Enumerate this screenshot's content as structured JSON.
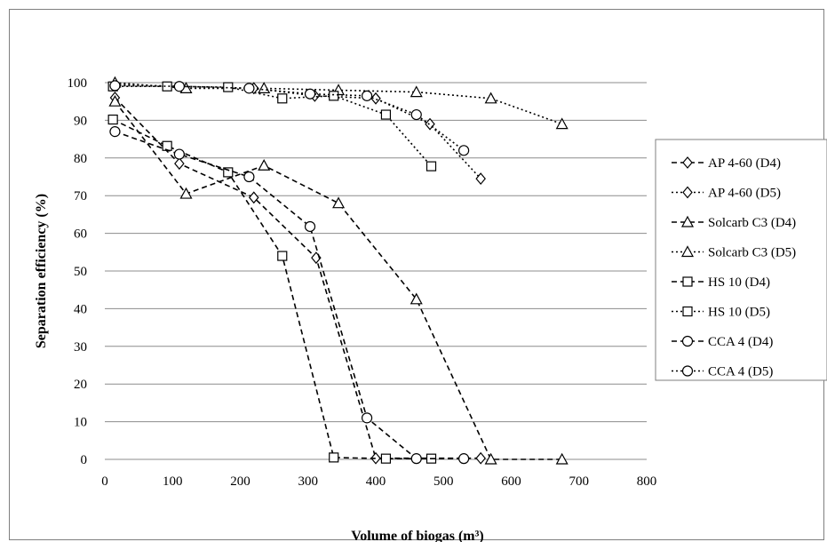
{
  "chart_data": {
    "type": "line",
    "title": "",
    "xlabel": "Volume of biogas (m³)",
    "ylabel": "Separation efficiency (%)",
    "xlim": [
      0,
      800
    ],
    "ylim": [
      0,
      100
    ],
    "x_ticks": [
      0,
      100,
      200,
      300,
      400,
      500,
      600,
      700,
      800
    ],
    "y_ticks": [
      0,
      10,
      20,
      30,
      40,
      50,
      60,
      70,
      80,
      90,
      100
    ],
    "grid": "horizontal",
    "legend_position": "right",
    "series": [
      {
        "name": "AP 4-60 (D4)",
        "marker": "diamond",
        "dash": "dashed",
        "points": [
          [
            15,
            96
          ],
          [
            110,
            78.5
          ],
          [
            220,
            69.5
          ],
          [
            312,
            53.5
          ],
          [
            400,
            0.3
          ],
          [
            555,
            0.3
          ]
        ]
      },
      {
        "name": "AP 4-60 (D5)",
        "marker": "diamond",
        "dash": "dotted",
        "points": [
          [
            15,
            99.5
          ],
          [
            220,
            98.5
          ],
          [
            310,
            96.5
          ],
          [
            400,
            95.8
          ],
          [
            480,
            89
          ],
          [
            555,
            74.5
          ]
        ]
      },
      {
        "name": "Solcarb C3 (D4)",
        "marker": "triangle",
        "dash": "dashed",
        "points": [
          [
            15,
            95
          ],
          [
            120,
            70.5
          ],
          [
            235,
            78
          ],
          [
            345,
            68
          ],
          [
            460,
            42.5
          ],
          [
            570,
            0
          ],
          [
            675,
            0
          ]
        ]
      },
      {
        "name": "Solcarb C3 (D5)",
        "marker": "triangle",
        "dash": "dotted",
        "points": [
          [
            15,
            100
          ],
          [
            120,
            98.5
          ],
          [
            235,
            98.5
          ],
          [
            345,
            98
          ],
          [
            460,
            97.5
          ],
          [
            570,
            95.8
          ],
          [
            675,
            89
          ]
        ]
      },
      {
        "name": "HS 10 (D4)",
        "marker": "square",
        "dash": "dashed",
        "points": [
          [
            12,
            90.2
          ],
          [
            92,
            83.2
          ],
          [
            182,
            76.2
          ],
          [
            262,
            54
          ],
          [
            338,
            0.5
          ],
          [
            415,
            0.2
          ],
          [
            482,
            0.2
          ]
        ]
      },
      {
        "name": "HS 10 (D5)",
        "marker": "square",
        "dash": "dotted",
        "points": [
          [
            12,
            99
          ],
          [
            92,
            99
          ],
          [
            182,
            98.8
          ],
          [
            262,
            95.8
          ],
          [
            338,
            96.5
          ],
          [
            415,
            91.5
          ],
          [
            482,
            77.8
          ]
        ]
      },
      {
        "name": "CCA 4 (D4)",
        "marker": "circle",
        "dash": "dashed",
        "points": [
          [
            15,
            87
          ],
          [
            110,
            81
          ],
          [
            213,
            75
          ],
          [
            303,
            61.8
          ],
          [
            387,
            11
          ],
          [
            460,
            0.2
          ],
          [
            530,
            0.2
          ]
        ]
      },
      {
        "name": "CCA 4 (D5)",
        "marker": "circle",
        "dash": "dotted",
        "points": [
          [
            15,
            99.2
          ],
          [
            110,
            99
          ],
          [
            213,
            98.5
          ],
          [
            303,
            97
          ],
          [
            387,
            96.5
          ],
          [
            460,
            91.5
          ],
          [
            530,
            82
          ]
        ]
      }
    ]
  }
}
